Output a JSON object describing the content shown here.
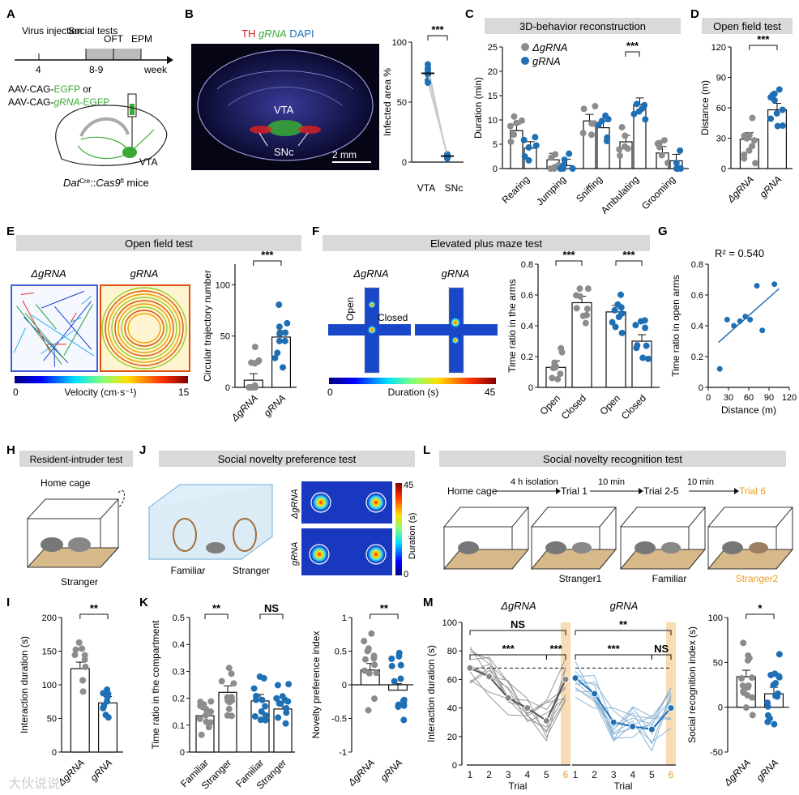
{
  "figure": {
    "panel_labels": [
      "A",
      "B",
      "C",
      "D",
      "E",
      "F",
      "G",
      "H",
      "I",
      "J",
      "K",
      "L",
      "M"
    ],
    "colors": {
      "control": "#8c8c8c",
      "grna": "#1f6fb5",
      "stranger2": "#e8a020",
      "banner": "#d9d9d9",
      "green": "#3aaa35",
      "red": "#e02020"
    },
    "watermark": "大伙说说"
  },
  "A": {
    "timeline": {
      "virus": "Virus injection",
      "social": "Social tests",
      "oft": "OFT",
      "epm": "EPM",
      "w4": "4",
      "w89": "8-9",
      "week": "week"
    },
    "aav1": {
      "pre": "AAV-CAG-",
      "hl": "EGFP",
      "post": " or"
    },
    "aav2": {
      "pre": "AAV-CAG-",
      "hl": "gRNA",
      "post": "-EGFP"
    },
    "vta": "VTA",
    "mouse": {
      "a": "Dat",
      "b": "Cre",
      "c": "::",
      "d": "Cas9",
      "e": "fl",
      "f": " mice"
    }
  },
  "B": {
    "stain": {
      "th": "TH ",
      "grna": "gRNA",
      "dapi": " DAPI"
    },
    "vta": "VTA",
    "snc": "SNc",
    "scale": "2 mm",
    "chart_data": {
      "type": "scatter-paired",
      "ylabel": "Infected area %",
      "ylim": [
        0,
        100
      ],
      "yticks": [
        0,
        50,
        100
      ],
      "categories": [
        "VTA",
        "SNc"
      ],
      "means": [
        74,
        5
      ],
      "sig": "***"
    }
  },
  "C": {
    "banner": "3D-behavior reconstruction",
    "chart_data": {
      "type": "bar",
      "ylabel": "Duration (min)",
      "ylim": [
        0,
        25
      ],
      "yticks": [
        0,
        5,
        10,
        15,
        20,
        25
      ],
      "categories": [
        "Rearing",
        "Jumping",
        "Sniffing",
        "Ambulating",
        "Grooming"
      ],
      "series": [
        {
          "name": "ΔgRNA",
          "values": [
            7.8,
            1.8,
            9.8,
            5.5,
            3.2
          ]
        },
        {
          "name": "gRNA",
          "values": [
            4.2,
            0.6,
            8.4,
            13.2,
            1.6
          ]
        }
      ],
      "sig": {
        "category": "Ambulating",
        "label": "***"
      }
    }
  },
  "D": {
    "banner": "Open field test",
    "chart_data": {
      "type": "bar",
      "ylabel": "Distance (m)",
      "ylim": [
        0,
        120
      ],
      "yticks": [
        0,
        30,
        60,
        90,
        120
      ],
      "categories": [
        "ΔgRNA",
        "gRNA"
      ],
      "values": [
        29,
        58
      ],
      "sig": "***"
    }
  },
  "E": {
    "banner": "Open field test",
    "heat_left": "ΔgRNA",
    "heat_right": "gRNA",
    "cbar": {
      "min": "0",
      "max": "15",
      "label": "Velocity (cm·s⁻¹)"
    },
    "chart_data": {
      "type": "bar",
      "ylabel": "Circular trajectory number",
      "ylim": [
        0,
        120
      ],
      "yticks": [
        0,
        50,
        100
      ],
      "categories": [
        "ΔgRNA",
        "gRNA"
      ],
      "values": [
        7,
        49
      ],
      "sig": "***"
    }
  },
  "F": {
    "banner": "Elevated plus maze test",
    "heat_left": "ΔgRNA",
    "heat_right": "gRNA",
    "open": "Open",
    "closed": "Closed",
    "cbar": {
      "min": "0",
      "max": "45",
      "label": "Duration (s)"
    },
    "chart_data": {
      "type": "bar",
      "ylabel": "Time ratio in the arms",
      "ylim": [
        0,
        0.8
      ],
      "yticks": [
        0,
        0.2,
        0.4,
        0.6,
        0.8
      ],
      "categories": [
        "Open",
        "Closed",
        "Open",
        "Closed"
      ],
      "values": [
        0.13,
        0.55,
        0.49,
        0.3
      ],
      "sig": [
        "***",
        "***"
      ]
    }
  },
  "G": {
    "r2": "R² = 0.540",
    "chart_data": {
      "type": "scatter",
      "xlabel": "Distance (m)",
      "ylabel": "Time ratio in open arms",
      "xlim": [
        0,
        120
      ],
      "ylim": [
        0,
        0.8
      ],
      "xticks": [
        0,
        30,
        60,
        90,
        120
      ],
      "yticks": [
        0,
        0.2,
        0.4,
        0.6,
        0.8
      ],
      "x": [
        17,
        28,
        38,
        47,
        55,
        62,
        72,
        80,
        98
      ],
      "y": [
        0.12,
        0.44,
        0.4,
        0.43,
        0.46,
        0.44,
        0.66,
        0.37,
        0.67
      ],
      "fit": {
        "slope": 0.00389,
        "intercept": 0.233
      }
    }
  },
  "H": {
    "banner": "Resident-intruder test",
    "home": "Home cage",
    "stranger": "Stranger"
  },
  "J": {
    "banner": "Social novelty preference test",
    "familiar": "Familiar",
    "stranger": "Stranger",
    "row1": "ΔgRNA",
    "row2": "gRNA",
    "cbar": {
      "min": "0",
      "max": "45",
      "label": "Duration (s)"
    }
  },
  "L": {
    "banner": "Social novelty recognition test",
    "steps": [
      "Home cage",
      "4 h isolation",
      "Trial 1",
      "10 min",
      "Trial 2-5",
      "10 min",
      "Trial 6"
    ],
    "labels": [
      "Stranger1",
      "Familiar",
      "Stranger2"
    ]
  },
  "I": {
    "chart_data": {
      "type": "bar",
      "ylabel": "Interaction duration (s)",
      "ylim": [
        0,
        200
      ],
      "yticks": [
        0,
        50,
        100,
        150,
        200
      ],
      "categories": [
        "ΔgRNA",
        "gRNA"
      ],
      "values": [
        124,
        73
      ],
      "sig": "**"
    }
  },
  "K": {
    "chart_data": [
      {
        "type": "bar",
        "ylabel": "Time ratio in the compartment",
        "ylim": [
          0,
          0.5
        ],
        "yticks": [
          0,
          0.1,
          0.2,
          0.3,
          0.4,
          0.5
        ],
        "categories": [
          "Familiar",
          "Stranger",
          "Familiar",
          "Stranger"
        ],
        "values": [
          0.135,
          0.222,
          0.19,
          0.16
        ],
        "sig": [
          "**",
          "NS"
        ]
      },
      {
        "type": "bar",
        "ylabel": "Novelty preference index",
        "ylim": [
          -1,
          1
        ],
        "yticks": [
          -1,
          -0.5,
          0,
          0.5,
          1
        ],
        "categories": [
          "ΔgRNA",
          "gRNA"
        ],
        "values": [
          0.22,
          -0.08
        ],
        "sig": "**"
      }
    ]
  },
  "M": {
    "title_left": "ΔgRNA",
    "title_right": "gRNA",
    "chart_data": [
      {
        "type": "line",
        "ylabel": "Interaction duration (s)",
        "xlabel": "Trial",
        "ylim": [
          0,
          100
        ],
        "yticks": [
          0,
          20,
          40,
          60,
          80,
          100
        ],
        "x": [
          1,
          2,
          3,
          4,
          5,
          6
        ],
        "series": [
          {
            "name": "ΔgRNA",
            "values": [
              68,
              62,
              47,
              40,
              31,
              60
            ]
          },
          {
            "name": "gRNA",
            "values": [
              61,
              50,
              30,
              27,
              25,
              40
            ]
          }
        ],
        "baseline": 68,
        "sig_left": [
          "NS",
          "***",
          "***"
        ],
        "sig_right": [
          "**",
          "***",
          "NS"
        ]
      },
      {
        "type": "bar",
        "ylabel": "Social recognition index (s)",
        "ylim": [
          -50,
          100
        ],
        "yticks": [
          -50,
          0,
          50,
          100
        ],
        "categories": [
          "ΔgRNA",
          "gRNA"
        ],
        "values": [
          34,
          15
        ],
        "sig": "*"
      }
    ]
  }
}
